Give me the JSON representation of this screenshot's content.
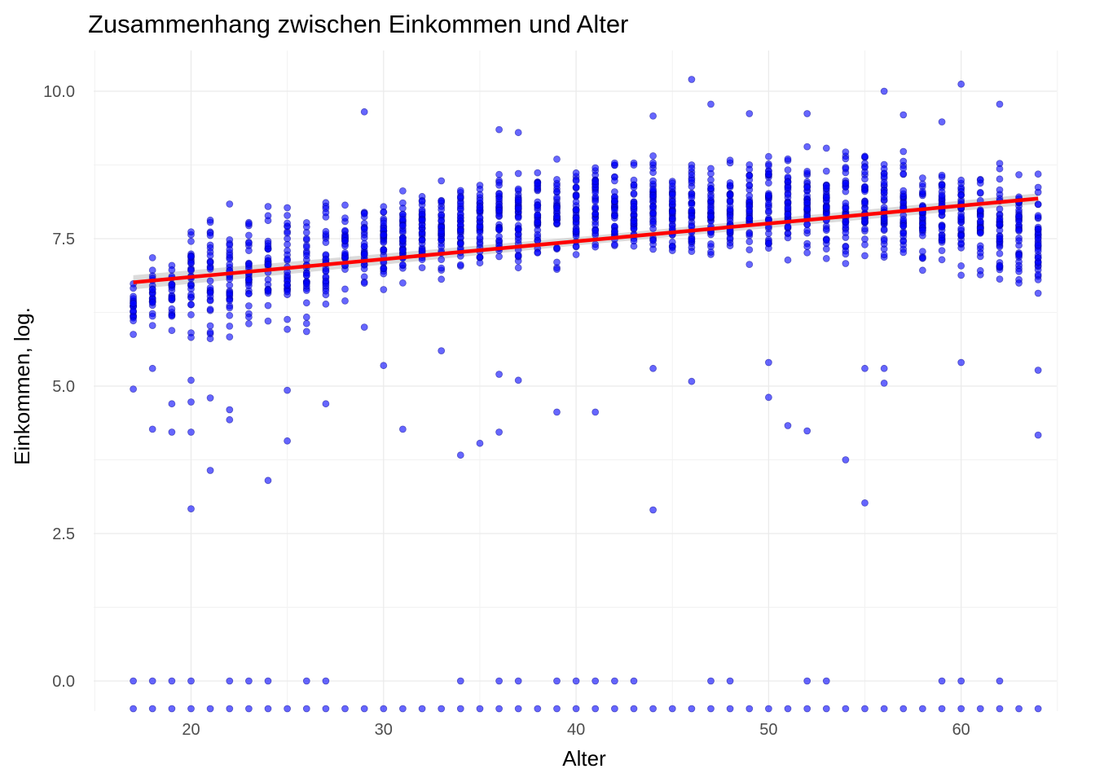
{
  "chart_data": {
    "type": "scatter",
    "title": "Zusammenhang zwischen Einkommen und Alter",
    "xlabel": "Alter",
    "ylabel": "Einkommen, log.",
    "xlim": [
      15,
      65
    ],
    "ylim": [
      -0.47,
      10.7
    ],
    "x_ticks": [
      20,
      30,
      40,
      50,
      60
    ],
    "y_ticks": [
      0.0,
      2.5,
      5.0,
      7.5,
      10.0
    ],
    "x_tick_labels": [
      "20",
      "30",
      "40",
      "50",
      "60"
    ],
    "y_tick_labels": [
      "0.0",
      "2.5",
      "5.0",
      "7.5",
      "10.0"
    ],
    "grid": true,
    "legend": "none",
    "point_color": "#0000ff",
    "line_color": "#ff0000",
    "band_color": "#bebebe",
    "age_range": [
      17,
      64
    ],
    "fit_line": {
      "x": [
        17,
        64
      ],
      "y": [
        6.76,
        8.18
      ]
    },
    "typical_band_by_age": [
      {
        "x": 17,
        "low": 5.6,
        "high": 7.05
      },
      {
        "x": 20,
        "low": 5.4,
        "high": 8.15
      },
      {
        "x": 25,
        "low": 5.7,
        "high": 8.35
      },
      {
        "x": 30,
        "low": 6.5,
        "high": 8.45
      },
      {
        "x": 35,
        "low": 6.8,
        "high": 8.8
      },
      {
        "x": 40,
        "low": 6.8,
        "high": 9.05
      },
      {
        "x": 45,
        "low": 6.8,
        "high": 9.1
      },
      {
        "x": 50,
        "low": 6.9,
        "high": 9.2
      },
      {
        "x": 55,
        "low": 6.9,
        "high": 9.3
      },
      {
        "x": 60,
        "low": 6.7,
        "high": 9.0
      },
      {
        "x": 64,
        "low": 6.0,
        "high": 9.0
      }
    ],
    "outliers": [
      {
        "x": 17,
        "y": 4.95
      },
      {
        "x": 18,
        "y": 4.27
      },
      {
        "x": 18,
        "y": 5.3
      },
      {
        "x": 19,
        "y": 4.7
      },
      {
        "x": 19,
        "y": 4.22
      },
      {
        "x": 20,
        "y": 2.92
      },
      {
        "x": 20,
        "y": 4.22
      },
      {
        "x": 20,
        "y": 4.73
      },
      {
        "x": 20,
        "y": 5.1
      },
      {
        "x": 21,
        "y": 3.57
      },
      {
        "x": 21,
        "y": 4.8
      },
      {
        "x": 22,
        "y": 4.43
      },
      {
        "x": 22,
        "y": 4.6
      },
      {
        "x": 24,
        "y": 3.4
      },
      {
        "x": 25,
        "y": 4.07
      },
      {
        "x": 25,
        "y": 4.93
      },
      {
        "x": 27,
        "y": 4.7
      },
      {
        "x": 29,
        "y": 6.0
      },
      {
        "x": 29,
        "y": 9.65
      },
      {
        "x": 30,
        "y": 5.35
      },
      {
        "x": 31,
        "y": 4.27
      },
      {
        "x": 33,
        "y": 5.6
      },
      {
        "x": 34,
        "y": 3.83
      },
      {
        "x": 35,
        "y": 4.03
      },
      {
        "x": 36,
        "y": 4.22
      },
      {
        "x": 36,
        "y": 5.2
      },
      {
        "x": 36,
        "y": 9.35
      },
      {
        "x": 37,
        "y": 5.1
      },
      {
        "x": 37,
        "y": 9.3
      },
      {
        "x": 39,
        "y": 4.56
      },
      {
        "x": 41,
        "y": 4.56
      },
      {
        "x": 44,
        "y": 2.9
      },
      {
        "x": 44,
        "y": 5.3
      },
      {
        "x": 44,
        "y": 9.58
      },
      {
        "x": 46,
        "y": 5.08
      },
      {
        "x": 46,
        "y": 10.2
      },
      {
        "x": 47,
        "y": 9.78
      },
      {
        "x": 49,
        "y": 9.62
      },
      {
        "x": 50,
        "y": 4.81
      },
      {
        "x": 50,
        "y": 5.4
      },
      {
        "x": 51,
        "y": 4.33
      },
      {
        "x": 52,
        "y": 4.24
      },
      {
        "x": 52,
        "y": 9.62
      },
      {
        "x": 54,
        "y": 3.75
      },
      {
        "x": 55,
        "y": 3.02
      },
      {
        "x": 55,
        "y": 5.3
      },
      {
        "x": 56,
        "y": 5.05
      },
      {
        "x": 56,
        "y": 5.3
      },
      {
        "x": 56,
        "y": 10.0
      },
      {
        "x": 57,
        "y": 9.6
      },
      {
        "x": 59,
        "y": 9.48
      },
      {
        "x": 60,
        "y": 5.4
      },
      {
        "x": 60,
        "y": 10.12
      },
      {
        "x": 62,
        "y": 9.78
      },
      {
        "x": 64,
        "y": 4.17
      },
      {
        "x": 64,
        "y": 5.27
      }
    ],
    "zero_income_ages": [
      17,
      18,
      19,
      20,
      22,
      23,
      24,
      26,
      27,
      34,
      36,
      37,
      39,
      40,
      41,
      42,
      43,
      47,
      48,
      52,
      53,
      59,
      60,
      62
    ],
    "bottom_row_y": -0.47
  }
}
